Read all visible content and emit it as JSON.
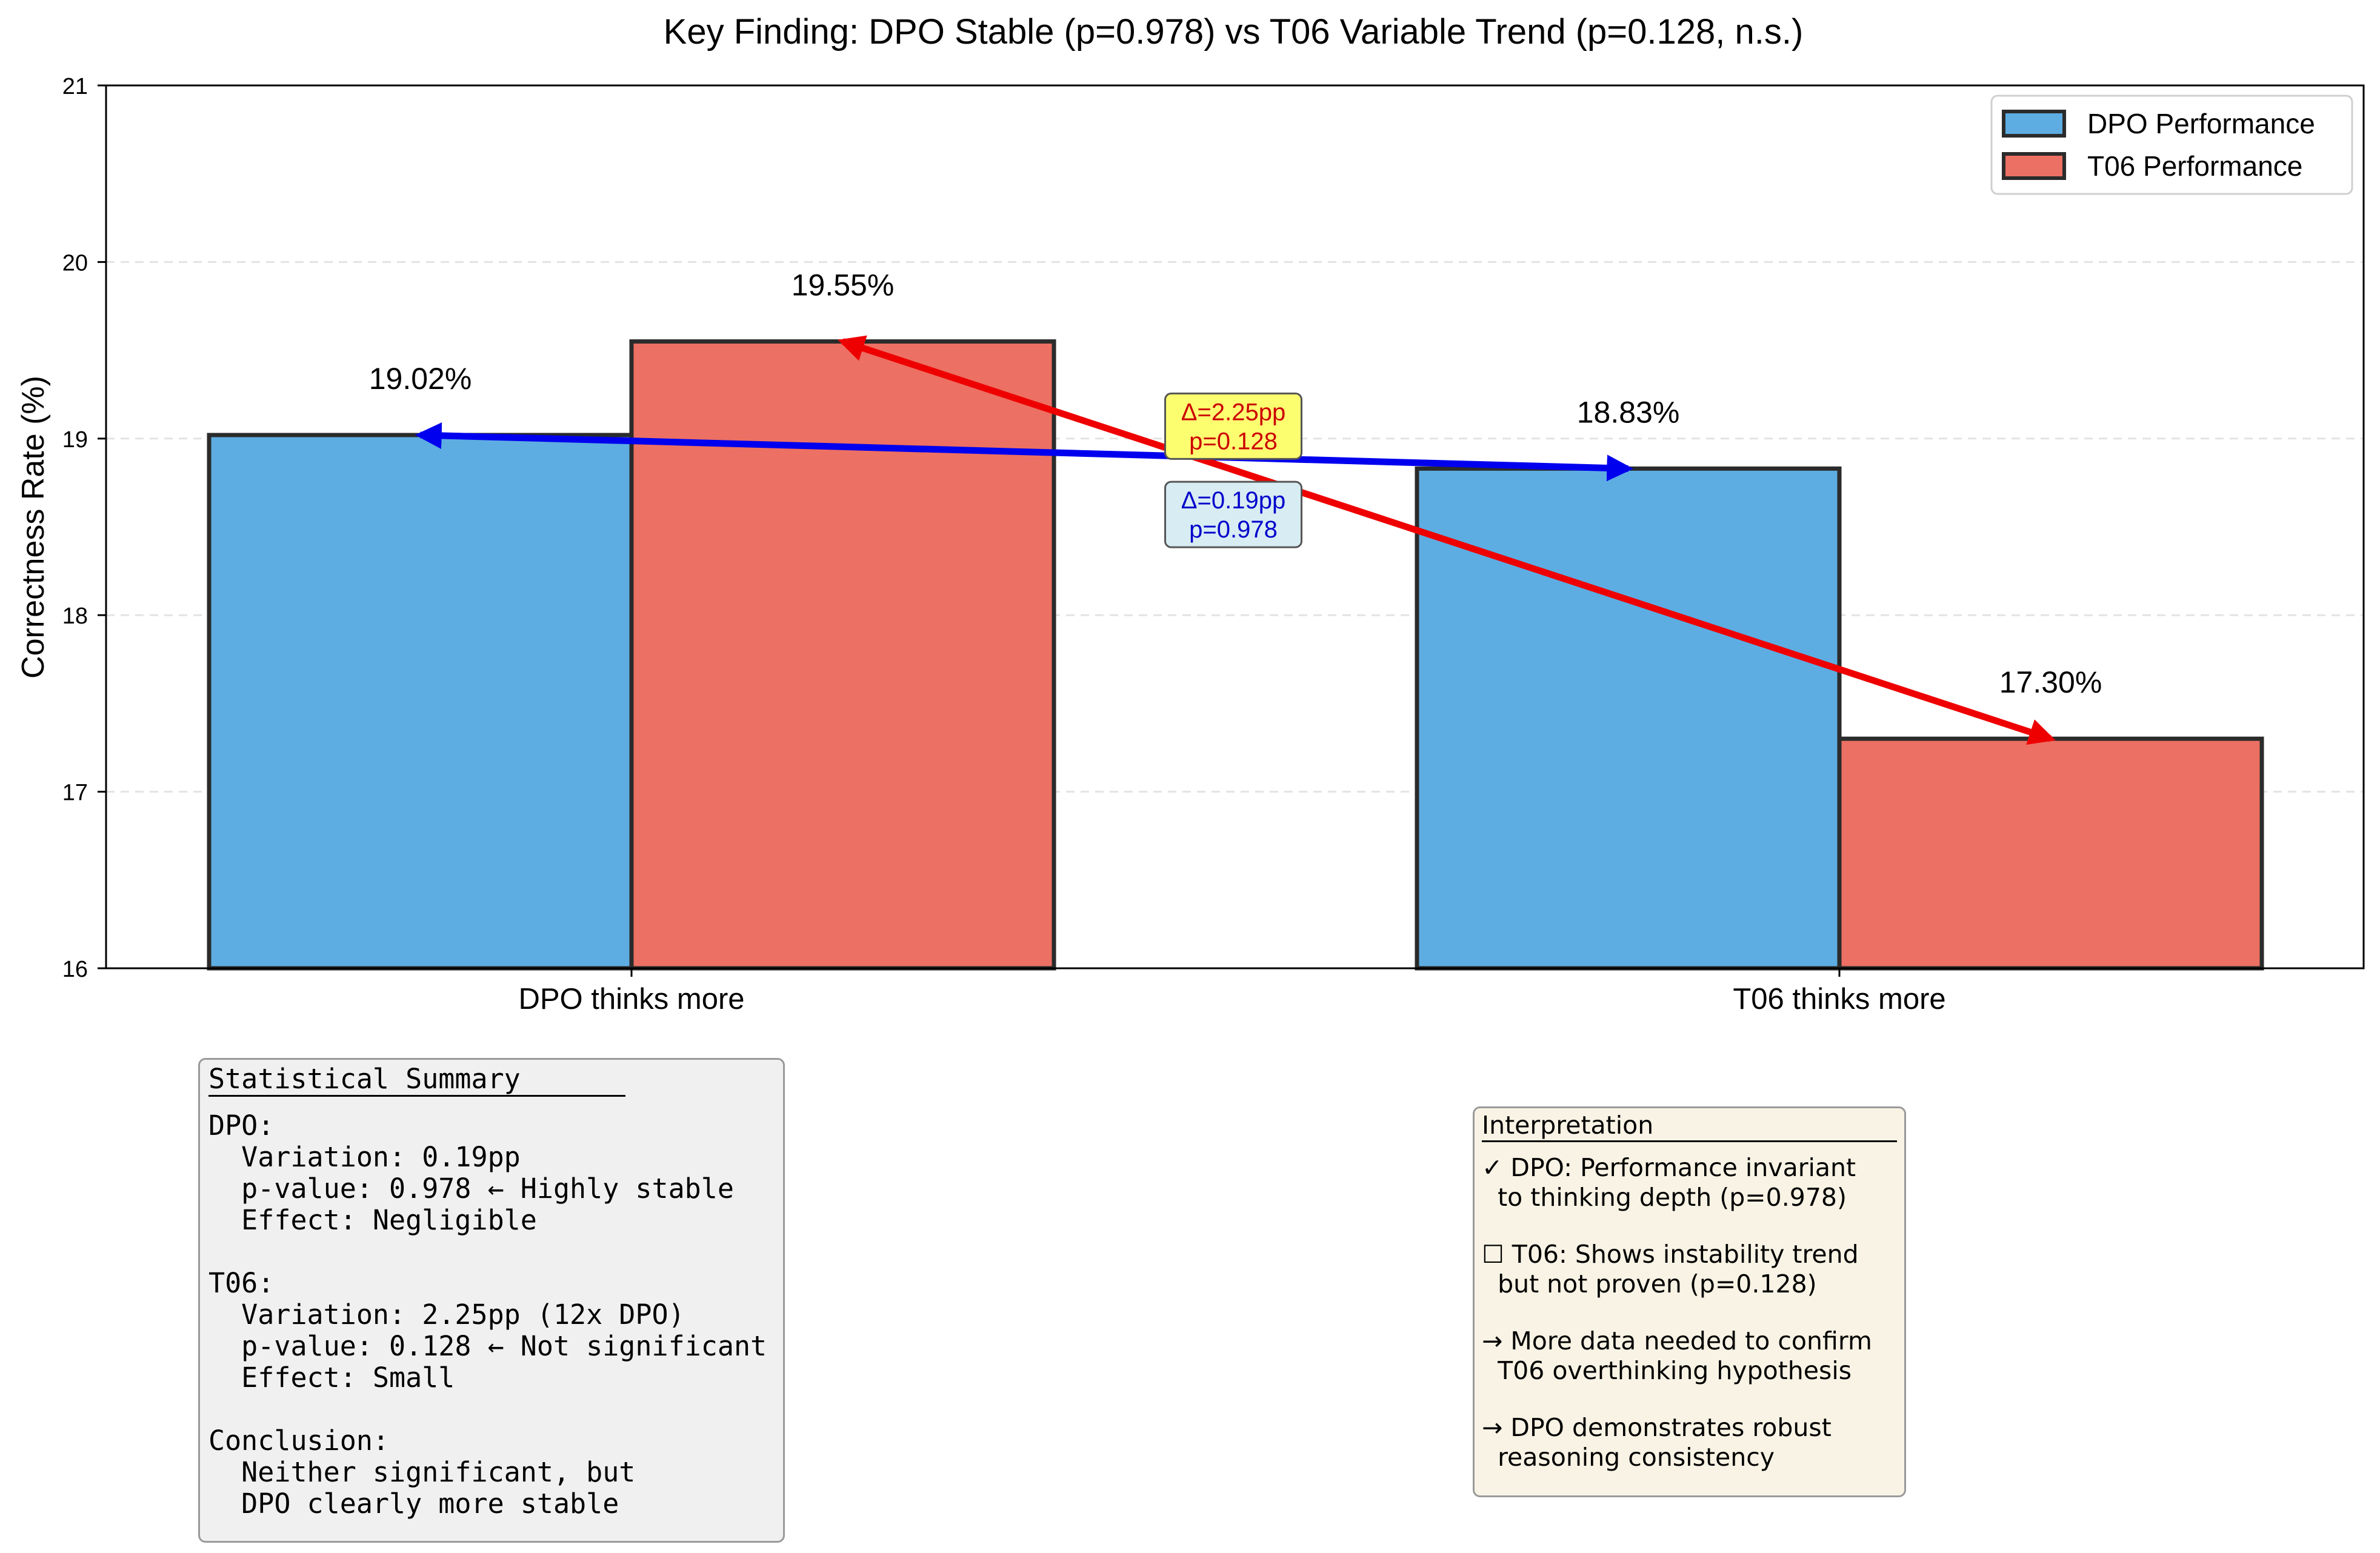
{
  "chart_data": {
    "type": "bar",
    "title": "Key Finding: DPO Stable (p=0.978) vs T06 Variable Trend (p=0.128, n.s.)",
    "xlabel": "",
    "ylabel": "Correctness Rate (%)",
    "ylim": [
      16,
      21
    ],
    "yticks": [
      16,
      17,
      18,
      19,
      20,
      21
    ],
    "grid": "y-dashed",
    "categories": [
      "DPO thinks more",
      "T06 thinks more"
    ],
    "series": [
      {
        "name": "DPO Performance",
        "color": "#5dade2",
        "values": [
          19.02,
          18.83
        ],
        "labels": [
          "19.02%",
          "18.83%"
        ]
      },
      {
        "name": "T06 Performance",
        "color": "#ec7063",
        "values": [
          19.55,
          17.3
        ],
        "labels": [
          "19.55%",
          "17.30%"
        ]
      }
    ],
    "legend": {
      "position": "top-right",
      "entries": [
        "DPO Performance",
        "T06 Performance"
      ]
    },
    "trend_arrows": [
      {
        "series": "DPO Performance",
        "color": "#0000ee",
        "from": 19.02,
        "to": 18.83
      },
      {
        "series": "T06 Performance",
        "color": "#ee0000",
        "from": 19.55,
        "to": 17.3
      }
    ],
    "annotations": [
      {
        "lines": [
          "Δ=2.25pp",
          "p=0.128"
        ],
        "color": "#cc0000",
        "background": "#fdfd70"
      },
      {
        "lines": [
          "Δ=0.19pp",
          "p=0.978"
        ],
        "color": "#0000cc",
        "background": "#d7ecf3"
      }
    ]
  },
  "stats_box": {
    "title": "Statistical Summary",
    "lines": [
      "DPO:",
      "  Variation: 0.19pp",
      "  p-value: 0.978 ← Highly stable",
      "  Effect: Negligible",
      "",
      "T06:",
      "  Variation: 2.25pp (12x DPO)",
      "  p-value: 0.128 ← Not significant",
      "  Effect: Small",
      "",
      "Conclusion:",
      "  Neither significant, but",
      "  DPO clearly more stable"
    ]
  },
  "interpretation_box": {
    "title": "Interpretation",
    "items": [
      [
        "✓ DPO: Performance invariant",
        "  to thinking depth (p=0.978)"
      ],
      [
        "☐ T06: Shows instability trend",
        "  but not proven (p=0.128)"
      ],
      [
        "→ More data needed to confirm",
        "  T06 overthinking hypothesis"
      ],
      [
        "→ DPO demonstrates robust",
        "  reasoning consistency"
      ]
    ]
  }
}
